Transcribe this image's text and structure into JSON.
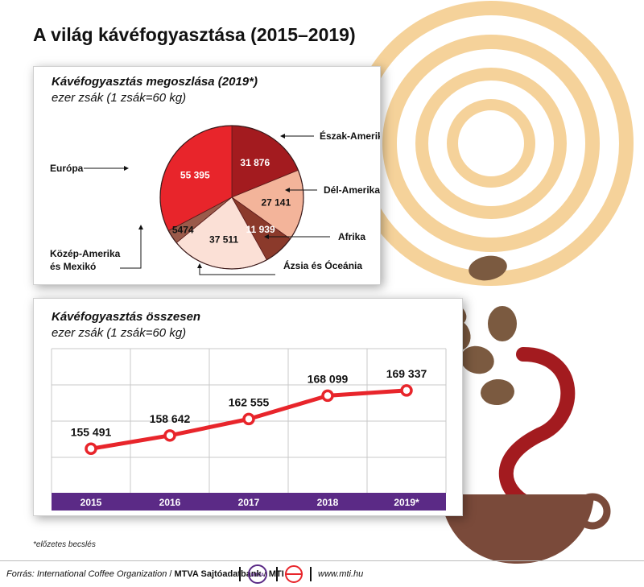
{
  "title": "A világ kávéfogyasztása (2015–2019)",
  "colors": {
    "line": "#e8252b",
    "axis_band": "#5b2a86",
    "grid": "#c8c8c8",
    "slice_north_america": "#a31b1f",
    "slice_south_america": "#f3b49a",
    "slice_africa": "#8b3a2b",
    "slice_asia_oceania": "#fbe0d6",
    "slice_central_america": "#9a5a4a",
    "slice_europe": "#e8252b",
    "steam": "#f5d29a",
    "cup": "#7a4a3a",
    "bean": "#7b5a40",
    "swirl": "#a31b1f"
  },
  "pie_panel": {
    "title": "Kávéfogyasztás megoszlása (2019*)",
    "unit": "ezer zsák (1 zsák=60 kg)"
  },
  "line_panel": {
    "title": "Kávéfogyasztás összesen",
    "unit": "ezer zsák (1 zsák=60 kg)"
  },
  "chart_data": [
    {
      "type": "pie",
      "title": "Kávéfogyasztás megoszlása (2019*)",
      "unit": "ezer zsák (1 zsák=60 kg)",
      "slices": [
        {
          "label": "Észak-Amerika",
          "value": 31876,
          "value_label": "31 876",
          "color": "#a31b1f"
        },
        {
          "label": "Dél-Amerika",
          "value": 27141,
          "value_label": "27 141",
          "color": "#f3b49a"
        },
        {
          "label": "Afrika",
          "value": 11939,
          "value_label": "11 939",
          "color": "#8b3a2b"
        },
        {
          "label": "Ázsia és Óceánia",
          "value": 37511,
          "value_label": "37 511",
          "color": "#fbe0d6"
        },
        {
          "label": "Közép-Amerika és Mexikó",
          "value": 5474,
          "value_label": "5474",
          "color": "#9a5a4a"
        },
        {
          "label": "Európa",
          "value": 55395,
          "value_label": "55 395",
          "color": "#e8252b"
        }
      ]
    },
    {
      "type": "line",
      "title": "Kávéfogyasztás összesen",
      "unit": "ezer zsák (1 zsák=60 kg)",
      "categories": [
        "2015",
        "2016",
        "2017",
        "2018",
        "2019*"
      ],
      "values": [
        155491,
        158642,
        162555,
        168099,
        169337
      ],
      "value_labels": [
        "155 491",
        "158 642",
        "162 555",
        "168 099",
        "169 337"
      ],
      "grid": true
    }
  ],
  "note": "*előzetes becslés",
  "footer": {
    "source_prefix": "Forrás: International Coffee Organization",
    "source_agency": "MTVA Sajtóadatbank",
    "source_mti": "MTI",
    "logo_text": "MTVA",
    "url": "www.mti.hu"
  }
}
